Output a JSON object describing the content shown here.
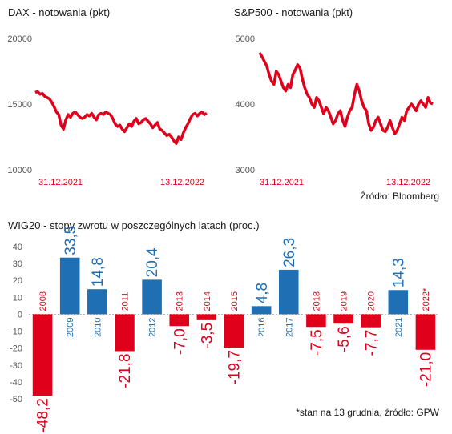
{
  "chart_data": [
    {
      "type": "line",
      "title": "DAX - notowania (pkt)",
      "ylim": [
        10000,
        20000
      ],
      "yticks": [
        "20000",
        "15000",
        "10000"
      ],
      "ytick_values": [
        20000,
        15000,
        10000
      ],
      "x_labels": [
        "31.12.2021",
        "13.12.2022"
      ],
      "series_color": "#e0001b",
      "series": [
        {
          "values": [
            15880,
            15950,
            15750,
            15820,
            15600,
            15500,
            15400,
            15150,
            14800,
            14400,
            14200,
            13400,
            13100,
            13800,
            14200,
            14000,
            14300,
            14400,
            14200,
            14000,
            13900,
            14000,
            14200,
            14100,
            14300,
            14000,
            13800,
            14200,
            14300,
            14200,
            14400,
            14300,
            14200,
            13900,
            13500,
            13300,
            13400,
            13100,
            12900,
            13200,
            13500,
            13300,
            13700,
            13900,
            13500,
            13600,
            13800,
            13900,
            13700,
            13500,
            13200,
            13400,
            13600,
            13100,
            13000,
            12800,
            12600,
            12700,
            12500,
            12200,
            12000,
            12500,
            12300,
            12800,
            13200,
            13500,
            13900,
            14200,
            14300,
            14100,
            14300,
            14400,
            14200,
            14300
          ]
        }
      ]
    },
    {
      "type": "line",
      "title": "S&P500 - notowania (pkt)",
      "ylim": [
        3000,
        5000
      ],
      "yticks": [
        "5000",
        "4000",
        "3000"
      ],
      "ytick_values": [
        5000,
        4000,
        3000
      ],
      "x_labels": [
        "31.12.2021",
        "13.12.2022"
      ],
      "series_color": "#e0001b",
      "series": [
        {
          "values": [
            4780,
            4720,
            4650,
            4580,
            4450,
            4350,
            4300,
            4500,
            4450,
            4350,
            4250,
            4200,
            4300,
            4250,
            4450,
            4520,
            4600,
            4550,
            4380,
            4250,
            4150,
            4100,
            4000,
            3950,
            4100,
            4050,
            3950,
            3850,
            3950,
            3900,
            3800,
            3700,
            3750,
            3850,
            3900,
            3750,
            3660,
            3800,
            3900,
            3950,
            4150,
            4300,
            4200,
            4050,
            3950,
            3900,
            3700,
            3600,
            3650,
            3750,
            3800,
            3700,
            3600,
            3580,
            3650,
            3750,
            3640,
            3550,
            3600,
            3700,
            3800,
            3750,
            3900,
            3950,
            4000,
            3950,
            3900,
            4000,
            4050,
            4000,
            3950,
            4100,
            4020,
            4000
          ]
        }
      ]
    },
    {
      "type": "bar",
      "title": "WIG20 - stopy zwrotu w poszczególnych latach (proc.)",
      "categories": [
        "2008",
        "2009",
        "2010",
        "2011",
        "2012",
        "2013",
        "2014",
        "2015",
        "2016",
        "2017",
        "2018",
        "2019",
        "2020",
        "2021",
        "2022*"
      ],
      "values": [
        -48.2,
        33.5,
        14.8,
        -21.8,
        20.4,
        -7.0,
        -3.5,
        -19.7,
        4.8,
        26.3,
        -7.5,
        -5.6,
        -7.7,
        14.3,
        -21.0
      ],
      "value_labels": [
        "-48,2",
        "33,5",
        "14,8",
        "-21,8",
        "20,4",
        "-7,0",
        "-3,5",
        "-19,7",
        "4,8",
        "26,3",
        "-7,5",
        "-5,6",
        "-7,7",
        "14,3",
        "-21,0"
      ],
      "ylim": [
        -50,
        40
      ],
      "yticks": [
        "40",
        "30",
        "20",
        "10",
        "0",
        "-10",
        "-20",
        "-30",
        "-40",
        "-50"
      ],
      "ytick_values": [
        40,
        30,
        20,
        10,
        0,
        -10,
        -20,
        -30,
        -40,
        -50
      ],
      "positive_color": "#1f6fb4",
      "negative_color": "#e0001b"
    }
  ],
  "sources": {
    "top": "Źródło: Bloomberg",
    "bottom": "*stan na 13 grudnia, źródło: GPW"
  }
}
